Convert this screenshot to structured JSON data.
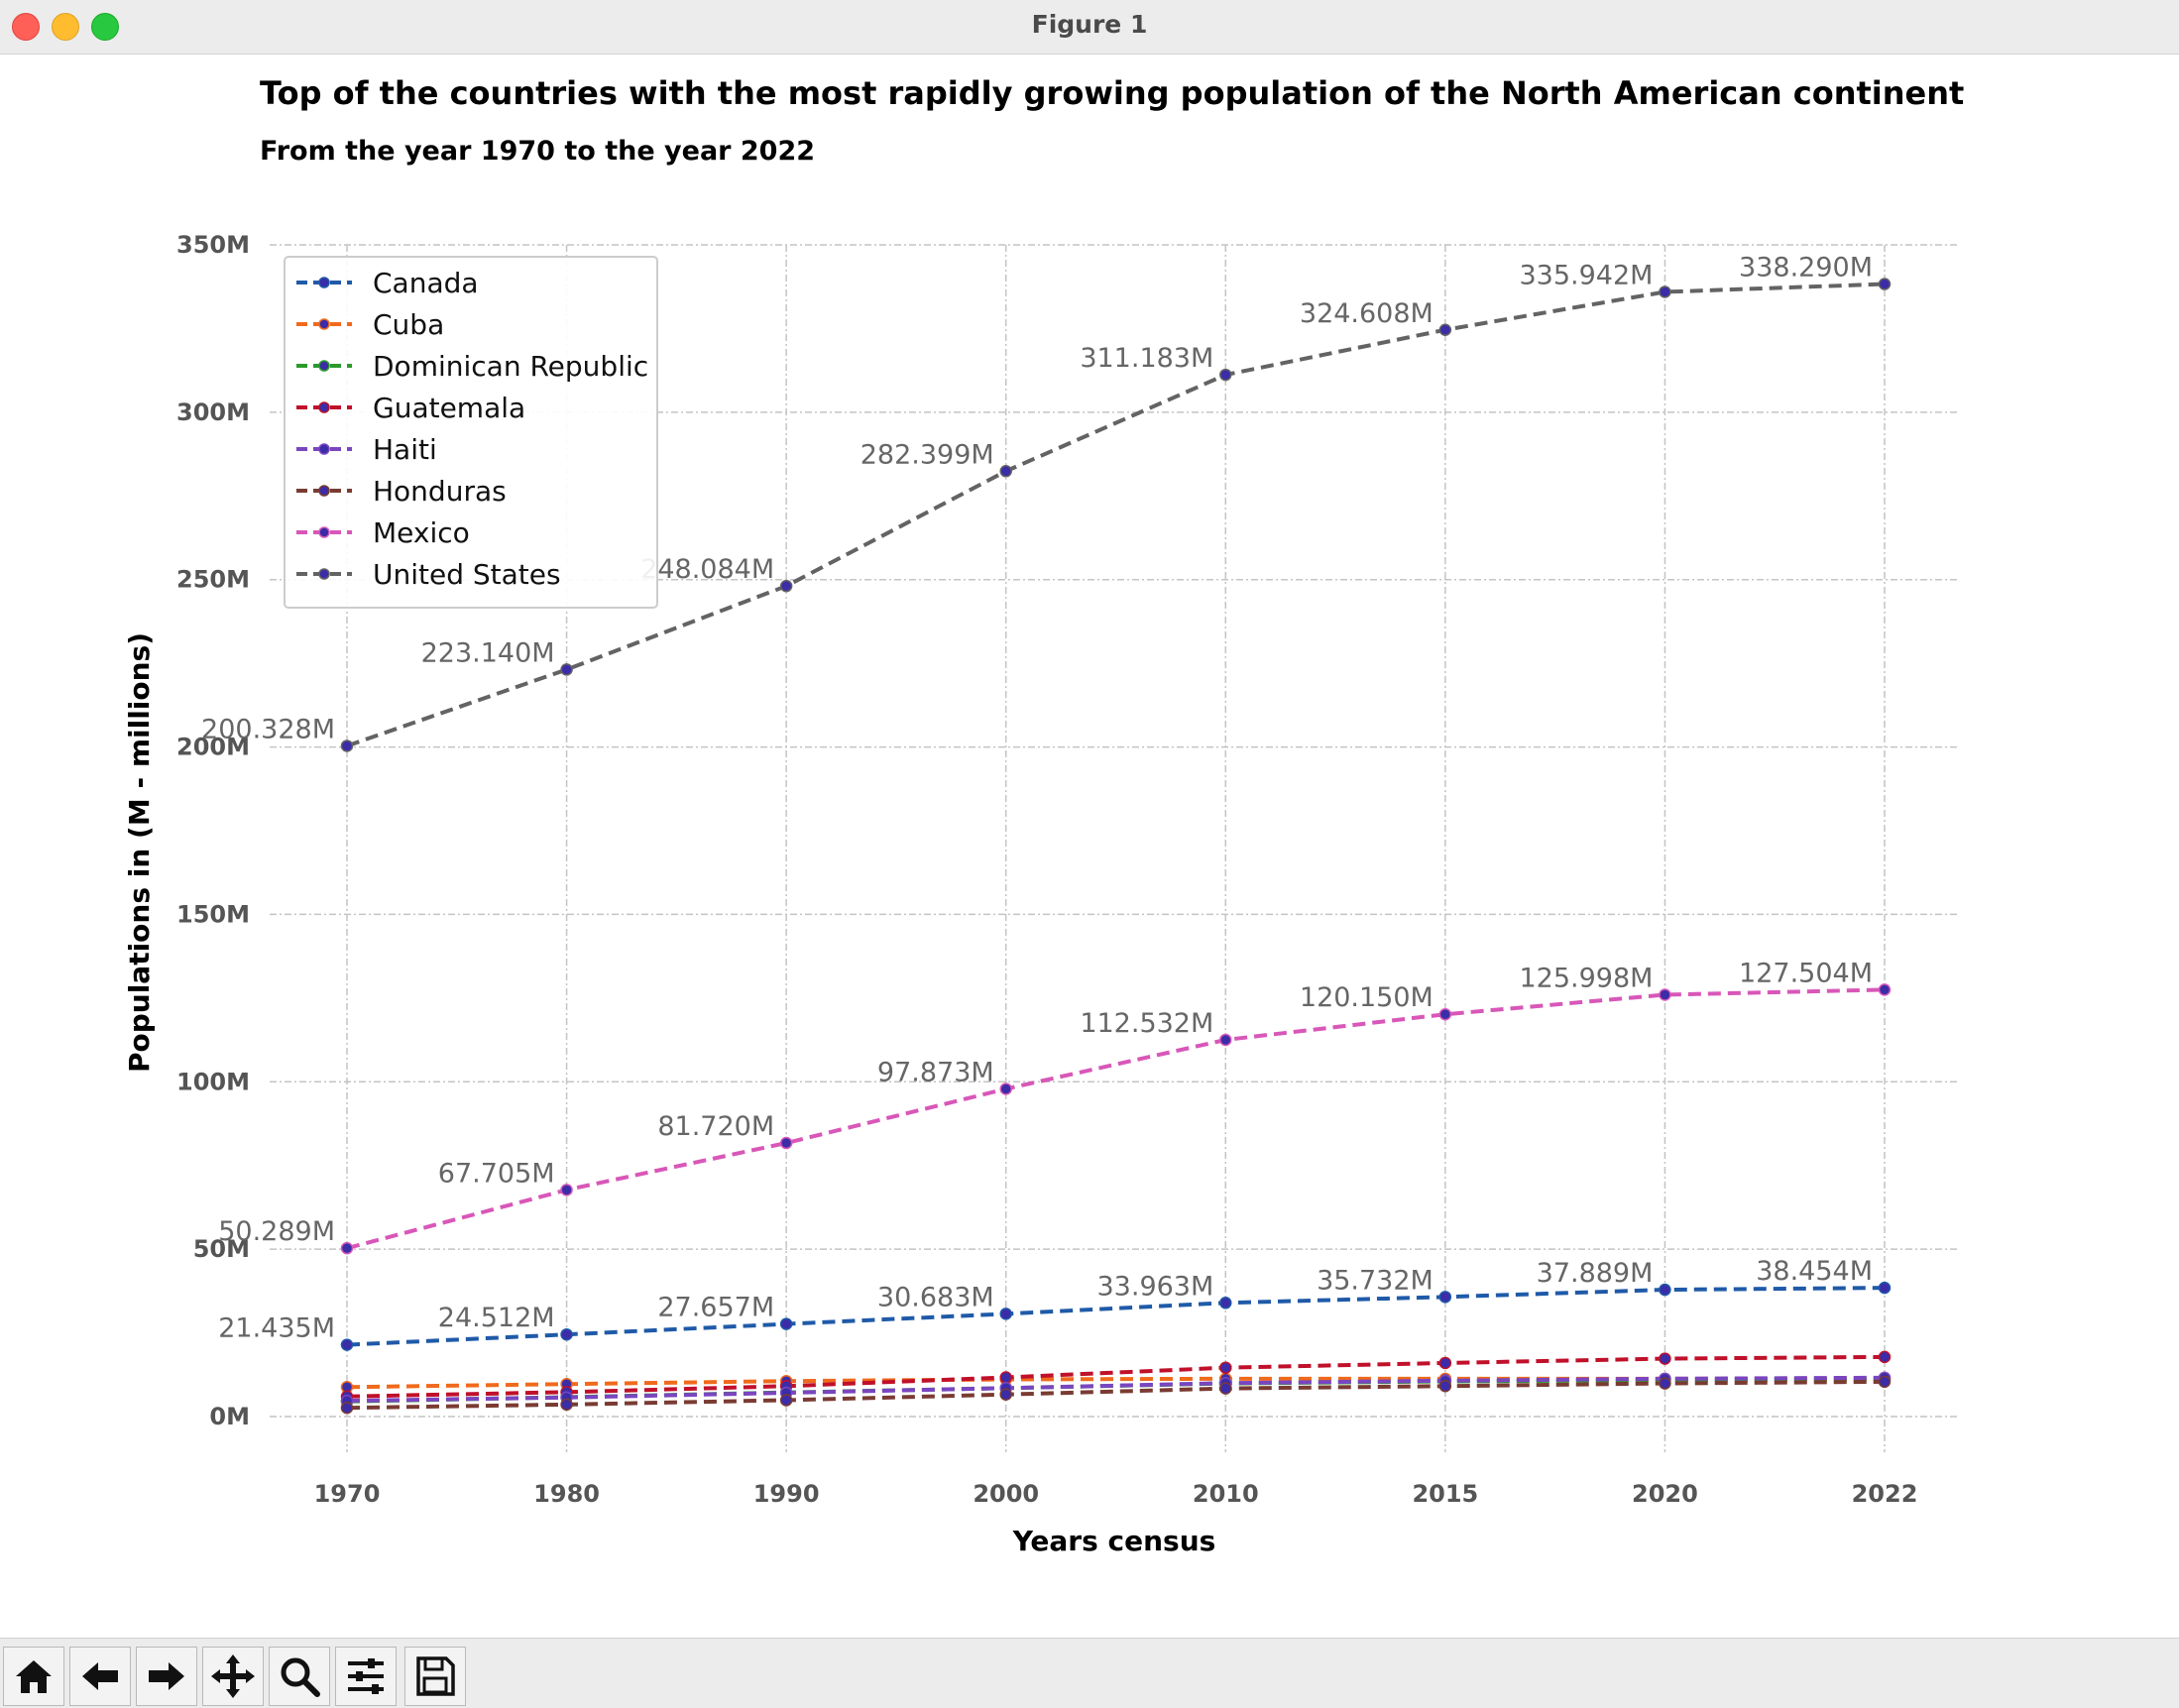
{
  "window": {
    "title": "Figure 1"
  },
  "toolbar": {
    "buttons": [
      {
        "name": "home-icon"
      },
      {
        "name": "back-arrow-icon"
      },
      {
        "name": "forward-arrow-icon"
      },
      {
        "name": "pan-icon"
      },
      {
        "name": "zoom-icon"
      },
      {
        "name": "configure-subplots-icon"
      },
      {
        "name": "save-icon"
      }
    ]
  },
  "chart_data": {
    "type": "line",
    "title": "Top of the countries with the most rapidly growing population of the North American continent",
    "subtitle": "From the year 1970 to the year 2022",
    "xlabel": "Years census",
    "ylabel": "Populations in (M - millions)",
    "categories": [
      "1970",
      "1980",
      "1990",
      "2000",
      "2010",
      "2015",
      "2020",
      "2022"
    ],
    "yticks": [
      0,
      50,
      100,
      150,
      200,
      250,
      300,
      350
    ],
    "ytick_labels": [
      "0M",
      "50M",
      "100M",
      "150M",
      "200M",
      "250M",
      "300M",
      "350M"
    ],
    "ylim": [
      -15,
      355
    ],
    "grid": true,
    "legend_position": "top-left",
    "marker_color": "#3b2ca8",
    "series": [
      {
        "name": "Canada",
        "color": "#1f5aa8",
        "values": [
          21.435,
          24.512,
          27.657,
          30.683,
          33.963,
          35.732,
          37.889,
          38.454
        ],
        "labels": [
          "21.435M",
          "24.512M",
          "27.657M",
          "30.683M",
          "33.963M",
          "35.732M",
          "37.889M",
          "38.454M"
        ]
      },
      {
        "name": "Cuba",
        "color": "#f06a1c",
        "values": [
          8.8,
          9.7,
          10.6,
          11.1,
          11.3,
          11.3,
          11.3,
          11.2
        ],
        "labels": []
      },
      {
        "name": "Dominican Republic",
        "color": "#2b9a2b",
        "values": [
          4.5,
          5.8,
          7.2,
          8.5,
          9.9,
          10.5,
          10.9,
          11.2
        ],
        "labels": []
      },
      {
        "name": "Guatemala",
        "color": "#c0102a",
        "values": [
          6.0,
          7.3,
          9.1,
          11.7,
          14.6,
          16.0,
          17.3,
          17.8
        ],
        "labels": []
      },
      {
        "name": "Haiti",
        "color": "#7a45c0",
        "values": [
          4.7,
          5.7,
          7.1,
          8.5,
          10.0,
          10.7,
          11.3,
          11.6
        ],
        "labels": []
      },
      {
        "name": "Honduras",
        "color": "#7a3b32",
        "values": [
          2.6,
          3.6,
          4.9,
          6.6,
          8.4,
          9.1,
          9.9,
          10.4
        ],
        "labels": []
      },
      {
        "name": "Mexico",
        "color": "#d857b8",
        "values": [
          50.289,
          67.705,
          81.72,
          97.873,
          112.532,
          120.15,
          125.998,
          127.504
        ],
        "labels": [
          "50.289M",
          "67.705M",
          "81.720M",
          "97.873M",
          "112.532M",
          "120.150M",
          "125.998M",
          "127.504M"
        ]
      },
      {
        "name": "United States",
        "color": "#636363",
        "values": [
          200.328,
          223.14,
          248.084,
          282.399,
          311.183,
          324.608,
          335.942,
          338.29
        ],
        "labels": [
          "200.328M",
          "223.140M",
          "248.084M",
          "282.399M",
          "311.183M",
          "324.608M",
          "335.942M",
          "338.290M"
        ]
      }
    ]
  }
}
